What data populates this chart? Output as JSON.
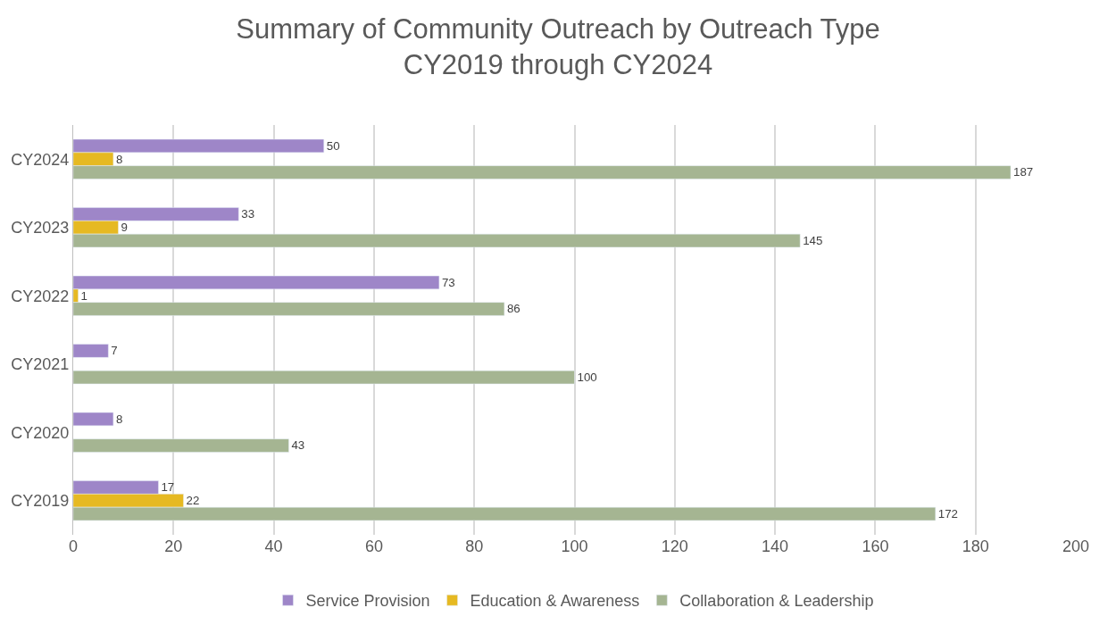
{
  "chart_data": {
    "type": "bar",
    "orientation": "horizontal",
    "title": "Summary of Community Outreach by Outreach Type\nCY2019 through CY2024",
    "categories": [
      "CY2024",
      "CY2023",
      "CY2022",
      "CY2021",
      "CY2020",
      "CY2019"
    ],
    "series": [
      {
        "name": "Service Provision",
        "color": "#9e86c8",
        "values": [
          50,
          33,
          73,
          7,
          8,
          17
        ]
      },
      {
        "name": "Education & Awareness",
        "color": "#e6b922",
        "values": [
          8,
          9,
          1,
          null,
          null,
          22
        ]
      },
      {
        "name": "Collaboration & Leadership",
        "color": "#a5b592",
        "values": [
          187,
          145,
          86,
          100,
          43,
          172
        ]
      }
    ],
    "xlim": [
      0,
      200
    ],
    "xticks": [
      0,
      20,
      40,
      60,
      80,
      100,
      120,
      140,
      160,
      180,
      200
    ],
    "grid": "x",
    "legend": "bottom",
    "data_labels": true
  }
}
